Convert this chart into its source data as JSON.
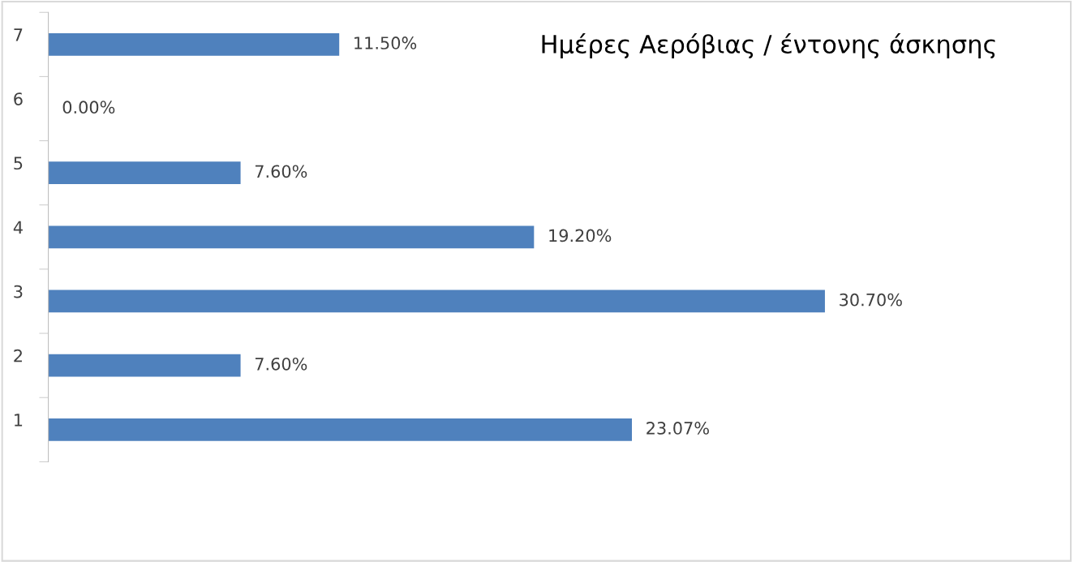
{
  "chart_data": {
    "type": "bar",
    "orientation": "horizontal",
    "title": "Ημέρες Αερόβιας / έντονης άσκησης",
    "categories": [
      "7",
      "6",
      "5",
      "4",
      "3",
      "2",
      "1"
    ],
    "values": [
      11.5,
      0,
      7.6,
      19.2,
      30.7,
      7.6,
      23.07
    ],
    "value_labels": [
      "11.50%",
      "0.00%",
      "7.60%",
      "19.20%",
      "30.70%",
      "7.60%",
      "23.07%"
    ],
    "color": "#4f81bd",
    "grid": false,
    "legend": false,
    "tick_labels": "y"
  }
}
